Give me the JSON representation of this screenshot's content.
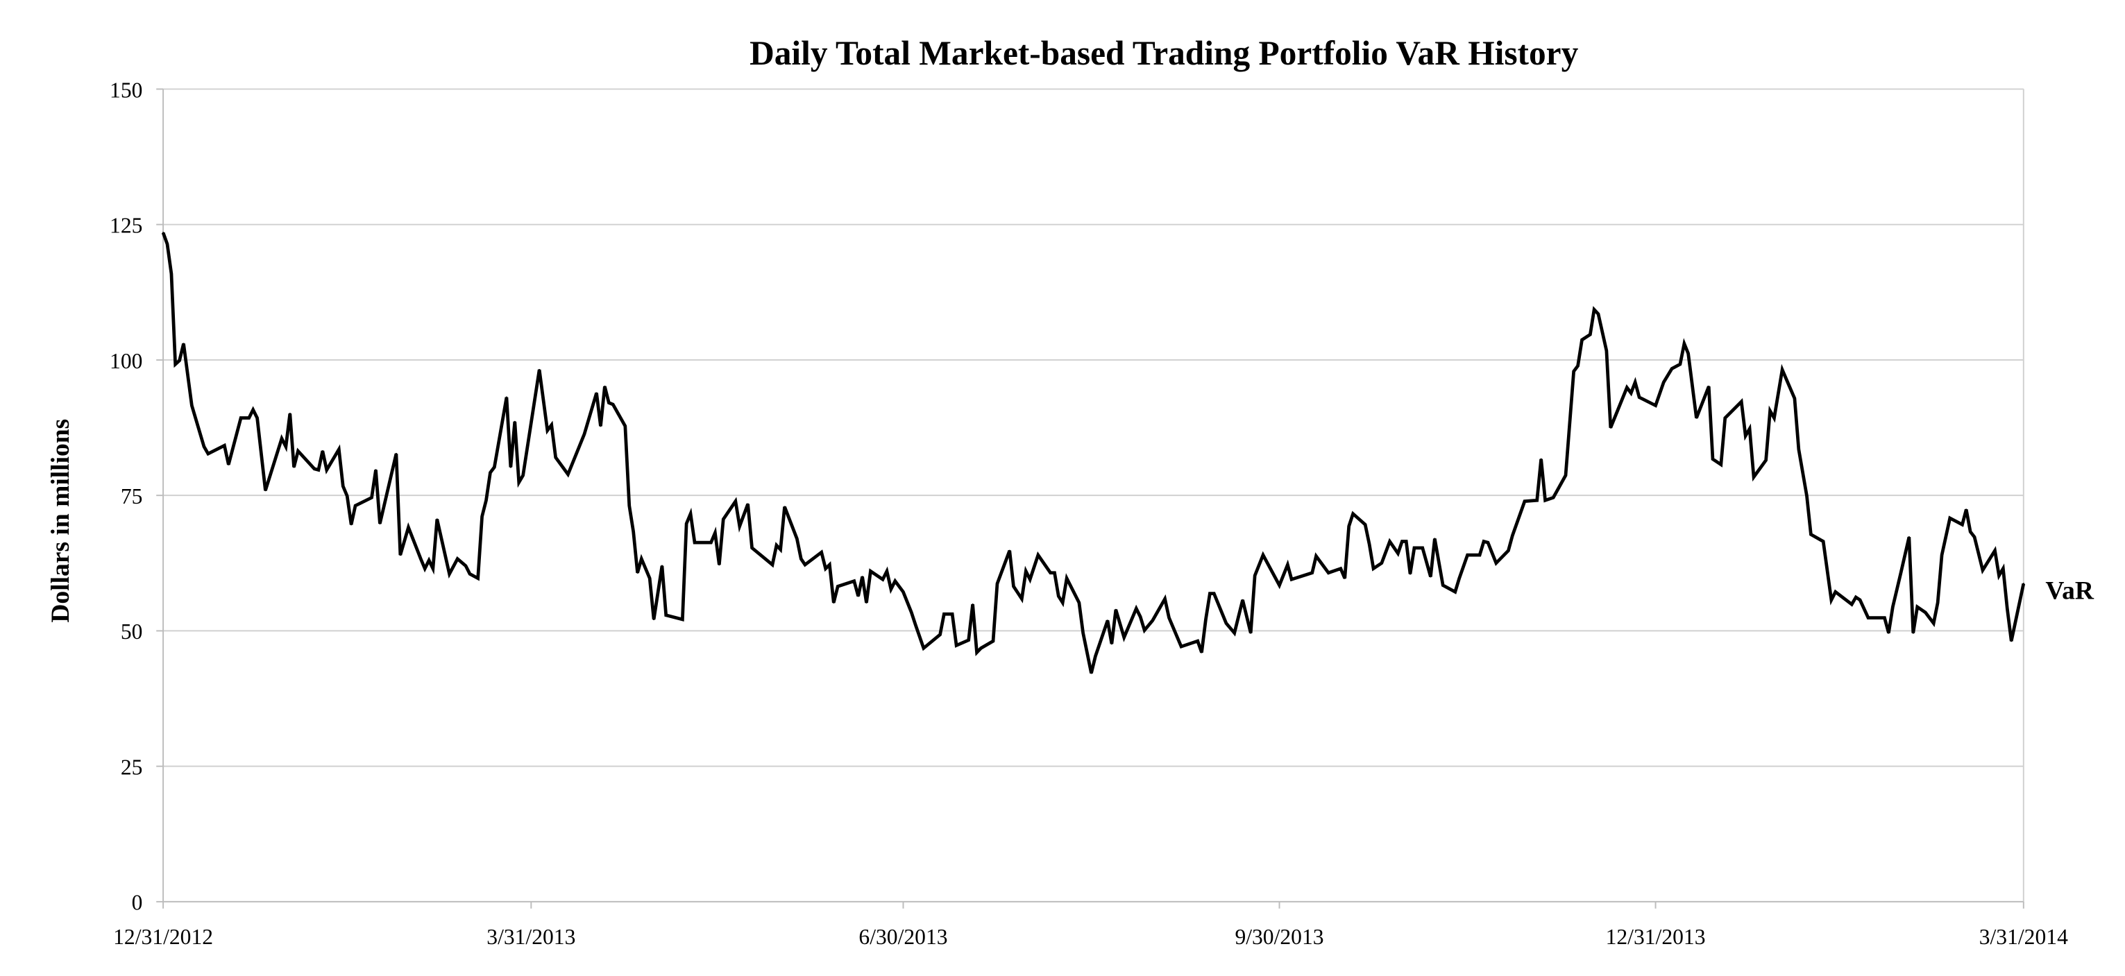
{
  "chart_data": {
    "type": "line",
    "title": "Daily Total Market-based Trading Portfolio VaR History",
    "xlabel": "",
    "ylabel": "Dollars in millions",
    "ylim": [
      0,
      150
    ],
    "yticks": [
      0,
      25,
      50,
      75,
      100,
      125,
      150
    ],
    "xlim_days": [
      0,
      455
    ],
    "xticks": [
      {
        "day": 0,
        "label": "12/31/2012"
      },
      {
        "day": 90,
        "label": "3/31/2013"
      },
      {
        "day": 181,
        "label": "6/30/2013"
      },
      {
        "day": 273,
        "label": "9/30/2013"
      },
      {
        "day": 365,
        "label": "12/31/2013"
      },
      {
        "day": 455,
        "label": "3/31/2014"
      }
    ],
    "grid": true,
    "legend": "end-of-line label, right",
    "series": [
      {
        "name": "VaR",
        "color": "#000000",
        "points": [
          [
            0,
            123.5
          ],
          [
            1,
            121.4
          ],
          [
            2,
            115.9
          ],
          [
            3,
            99.2
          ],
          [
            4,
            99.9
          ],
          [
            5,
            103.0
          ],
          [
            7,
            91.6
          ],
          [
            10,
            84.0
          ],
          [
            11,
            82.7
          ],
          [
            15,
            84.2
          ],
          [
            16,
            80.7
          ],
          [
            19,
            89.3
          ],
          [
            21,
            89.3
          ],
          [
            22,
            90.8
          ],
          [
            23,
            89.3
          ],
          [
            25,
            75.9
          ],
          [
            29,
            85.5
          ],
          [
            30,
            84.0
          ],
          [
            31,
            90.1
          ],
          [
            32,
            80.2
          ],
          [
            33,
            83.2
          ],
          [
            37,
            79.9
          ],
          [
            38,
            79.7
          ],
          [
            39,
            83.2
          ],
          [
            40,
            79.7
          ],
          [
            43,
            83.5
          ],
          [
            44,
            76.7
          ],
          [
            45,
            74.9
          ],
          [
            46,
            69.6
          ],
          [
            47,
            73.1
          ],
          [
            51,
            74.6
          ],
          [
            52,
            79.7
          ],
          [
            53,
            69.8
          ],
          [
            57,
            82.7
          ],
          [
            58,
            64.0
          ],
          [
            60,
            69.1
          ],
          [
            63,
            63.3
          ],
          [
            64,
            61.5
          ],
          [
            65,
            63.0
          ],
          [
            66,
            61.5
          ],
          [
            67,
            70.6
          ],
          [
            70,
            60.5
          ],
          [
            72,
            63.3
          ],
          [
            74,
            62.0
          ],
          [
            75,
            60.5
          ],
          [
            77,
            59.7
          ],
          [
            78,
            71.1
          ],
          [
            79,
            74.1
          ],
          [
            80,
            79.2
          ],
          [
            81,
            80.2
          ],
          [
            84,
            93.1
          ],
          [
            85,
            80.2
          ],
          [
            86,
            88.6
          ],
          [
            87,
            77.4
          ],
          [
            88,
            78.7
          ],
          [
            92,
            98.2
          ],
          [
            94,
            87.0
          ],
          [
            95,
            88.0
          ],
          [
            96,
            82.0
          ],
          [
            99,
            78.9
          ],
          [
            103,
            86.3
          ],
          [
            106,
            93.9
          ],
          [
            107,
            87.8
          ],
          [
            108,
            95.1
          ],
          [
            109,
            92.1
          ],
          [
            110,
            91.8
          ],
          [
            113,
            87.8
          ],
          [
            114,
            73.1
          ],
          [
            115,
            68.3
          ],
          [
            116,
            60.7
          ],
          [
            117,
            63.3
          ],
          [
            119,
            59.7
          ],
          [
            120,
            52.1
          ],
          [
            122,
            62.0
          ],
          [
            123,
            52.9
          ],
          [
            127,
            52.1
          ],
          [
            128,
            69.8
          ],
          [
            129,
            71.6
          ],
          [
            130,
            66.3
          ],
          [
            134,
            66.3
          ],
          [
            135,
            68.1
          ],
          [
            136,
            62.2
          ],
          [
            137,
            70.6
          ],
          [
            140,
            73.9
          ],
          [
            141,
            69.3
          ],
          [
            143,
            73.4
          ],
          [
            144,
            65.3
          ],
          [
            149,
            62.2
          ],
          [
            150,
            65.8
          ],
          [
            151,
            65.0
          ],
          [
            152,
            72.9
          ],
          [
            155,
            67.0
          ],
          [
            156,
            63.3
          ],
          [
            157,
            62.2
          ],
          [
            161,
            64.5
          ],
          [
            162,
            61.5
          ],
          [
            163,
            62.2
          ],
          [
            164,
            55.2
          ],
          [
            165,
            58.2
          ],
          [
            169,
            59.2
          ],
          [
            170,
            56.4
          ],
          [
            171,
            60.0
          ],
          [
            172,
            55.2
          ],
          [
            173,
            61.0
          ],
          [
            176,
            59.5
          ],
          [
            177,
            61.0
          ],
          [
            178,
            57.7
          ],
          [
            179,
            59.2
          ],
          [
            181,
            57.2
          ],
          [
            183,
            53.4
          ],
          [
            184,
            51.1
          ],
          [
            186,
            46.8
          ],
          [
            190,
            49.3
          ],
          [
            191,
            53.1
          ],
          [
            193,
            53.1
          ],
          [
            194,
            47.3
          ],
          [
            197,
            48.3
          ],
          [
            198,
            54.9
          ],
          [
            199,
            46.0
          ],
          [
            200,
            46.8
          ],
          [
            203,
            48.1
          ],
          [
            204,
            58.7
          ],
          [
            207,
            64.8
          ],
          [
            208,
            58.2
          ],
          [
            210,
            55.9
          ],
          [
            211,
            61.0
          ],
          [
            212,
            59.5
          ],
          [
            214,
            64.0
          ],
          [
            217,
            60.7
          ],
          [
            218,
            60.7
          ],
          [
            219,
            56.4
          ],
          [
            220,
            55.2
          ],
          [
            221,
            59.7
          ],
          [
            224,
            55.2
          ],
          [
            225,
            49.6
          ],
          [
            227,
            42.2
          ],
          [
            228,
            45.3
          ],
          [
            231,
            51.9
          ],
          [
            232,
            47.6
          ],
          [
            233,
            53.9
          ],
          [
            235,
            48.8
          ],
          [
            238,
            54.1
          ],
          [
            239,
            52.6
          ],
          [
            240,
            50.1
          ],
          [
            242,
            51.9
          ],
          [
            245,
            55.9
          ],
          [
            246,
            52.4
          ],
          [
            249,
            47.1
          ],
          [
            253,
            48.1
          ],
          [
            254,
            46.0
          ],
          [
            255,
            52.1
          ],
          [
            256,
            56.9
          ],
          [
            257,
            56.9
          ],
          [
            260,
            51.4
          ],
          [
            262,
            49.6
          ],
          [
            264,
            55.7
          ],
          [
            266,
            49.6
          ],
          [
            267,
            60.2
          ],
          [
            269,
            64.0
          ],
          [
            273,
            58.4
          ],
          [
            275,
            62.2
          ],
          [
            276,
            59.5
          ],
          [
            281,
            60.7
          ],
          [
            282,
            63.8
          ],
          [
            285,
            60.7
          ],
          [
            288,
            61.5
          ],
          [
            289,
            59.7
          ],
          [
            290,
            69.3
          ],
          [
            291,
            71.6
          ],
          [
            294,
            69.6
          ],
          [
            295,
            66.0
          ],
          [
            296,
            61.5
          ],
          [
            298,
            62.5
          ],
          [
            300,
            66.5
          ],
          [
            302,
            64.3
          ],
          [
            303,
            66.5
          ],
          [
            304,
            66.5
          ],
          [
            305,
            60.5
          ],
          [
            306,
            65.3
          ],
          [
            308,
            65.3
          ],
          [
            310,
            60.0
          ],
          [
            311,
            67.0
          ],
          [
            313,
            58.4
          ],
          [
            316,
            57.2
          ],
          [
            317,
            59.7
          ],
          [
            319,
            64.0
          ],
          [
            322,
            64.0
          ],
          [
            323,
            66.5
          ],
          [
            324,
            66.3
          ],
          [
            326,
            62.5
          ],
          [
            329,
            64.8
          ],
          [
            330,
            67.6
          ],
          [
            333,
            73.9
          ],
          [
            336,
            74.1
          ],
          [
            337,
            81.7
          ],
          [
            338,
            74.1
          ],
          [
            340,
            74.6
          ],
          [
            343,
            78.7
          ],
          [
            345,
            97.9
          ],
          [
            346,
            98.9
          ],
          [
            347,
            103.7
          ],
          [
            349,
            104.7
          ],
          [
            350,
            109.3
          ],
          [
            351,
            108.5
          ],
          [
            353,
            101.7
          ],
          [
            354,
            87.5
          ],
          [
            358,
            94.9
          ],
          [
            359,
            93.9
          ],
          [
            360,
            95.9
          ],
          [
            361,
            93.1
          ],
          [
            365,
            91.6
          ],
          [
            367,
            95.9
          ],
          [
            369,
            98.4
          ],
          [
            371,
            99.2
          ],
          [
            372,
            103.0
          ],
          [
            373,
            101.2
          ],
          [
            375,
            89.3
          ],
          [
            378,
            95.1
          ],
          [
            379,
            81.7
          ],
          [
            381,
            80.7
          ],
          [
            382,
            89.3
          ],
          [
            386,
            92.3
          ],
          [
            387,
            86.0
          ],
          [
            388,
            87.3
          ],
          [
            389,
            78.4
          ],
          [
            392,
            81.5
          ],
          [
            393,
            90.6
          ],
          [
            394,
            89.3
          ],
          [
            396,
            98.2
          ],
          [
            399,
            92.9
          ],
          [
            400,
            83.5
          ],
          [
            402,
            74.9
          ],
          [
            403,
            67.8
          ],
          [
            406,
            66.5
          ],
          [
            408,
            55.7
          ],
          [
            409,
            57.2
          ],
          [
            413,
            54.9
          ],
          [
            414,
            56.2
          ],
          [
            415,
            55.7
          ],
          [
            417,
            52.4
          ],
          [
            421,
            52.4
          ],
          [
            422,
            49.6
          ],
          [
            423,
            54.4
          ],
          [
            425,
            60.7
          ],
          [
            427,
            67.3
          ],
          [
            428,
            49.6
          ],
          [
            429,
            54.4
          ],
          [
            431,
            53.4
          ],
          [
            433,
            51.4
          ],
          [
            434,
            55.2
          ],
          [
            435,
            64.0
          ],
          [
            437,
            70.8
          ],
          [
            440,
            69.6
          ],
          [
            441,
            72.4
          ],
          [
            442,
            68.3
          ],
          [
            443,
            67.3
          ],
          [
            445,
            61.2
          ],
          [
            448,
            64.8
          ],
          [
            449,
            60.2
          ],
          [
            450,
            61.5
          ],
          [
            451,
            54.1
          ],
          [
            452,
            48.1
          ],
          [
            455,
            58.7
          ]
        ]
      }
    ]
  }
}
